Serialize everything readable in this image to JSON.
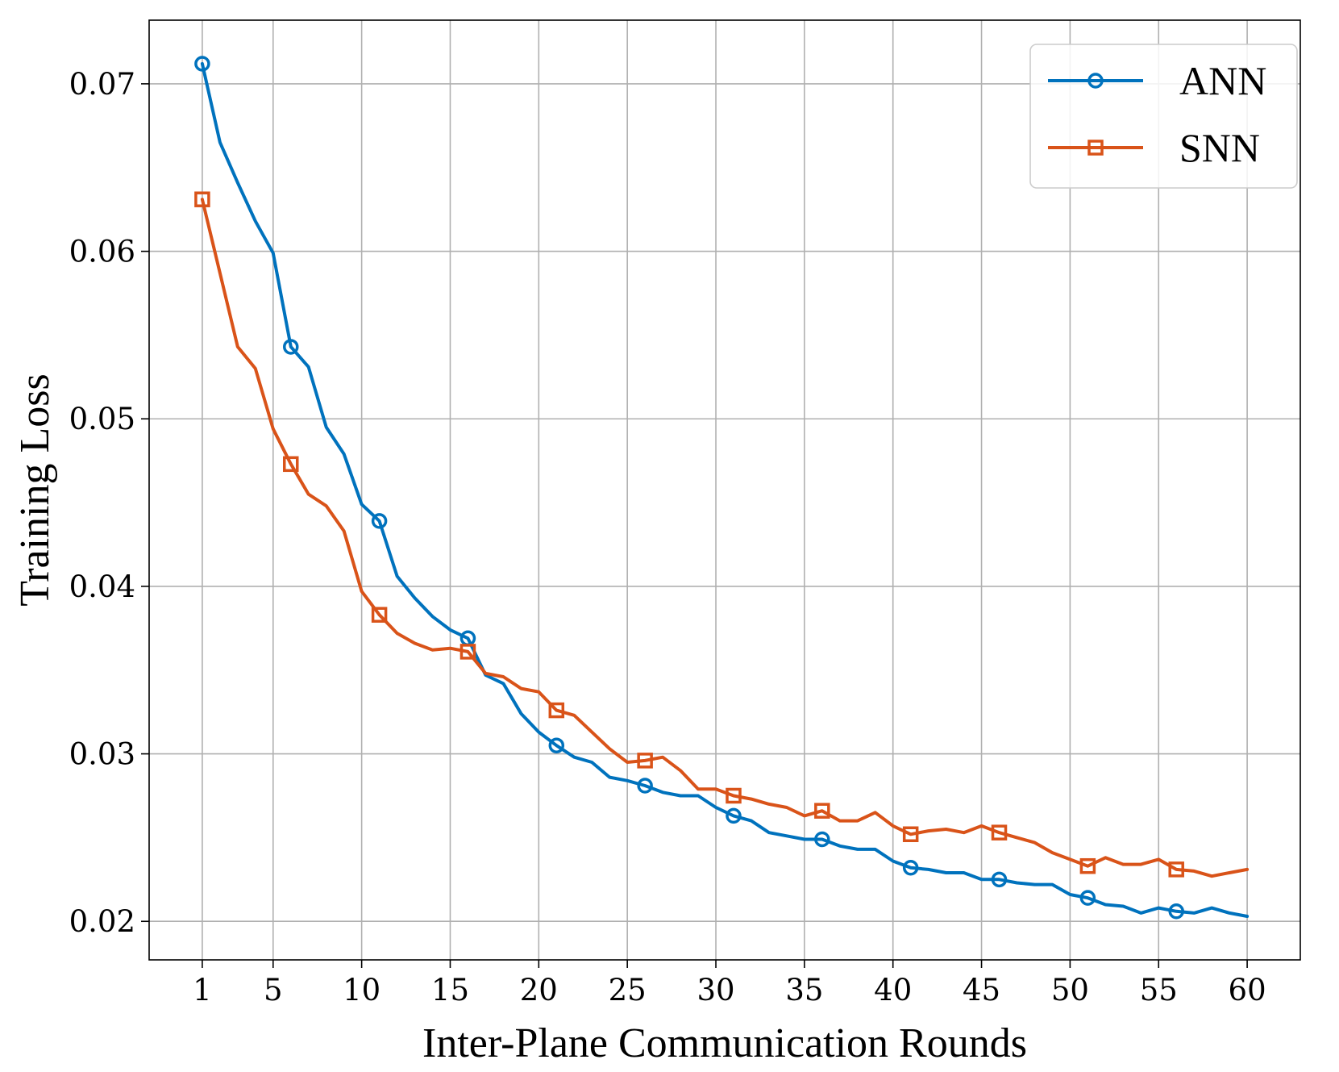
{
  "chart_data": {
    "type": "line",
    "title": "",
    "xlabel": "Inter-Plane Communication Rounds",
    "ylabel": "Training Loss",
    "xlim": [
      -2,
      63
    ],
    "ylim": [
      0.0177,
      0.0738
    ],
    "xticks": [
      1,
      5,
      10,
      15,
      20,
      25,
      30,
      35,
      40,
      45,
      50,
      55,
      60
    ],
    "xtick_labels": [
      "1",
      "5",
      "10",
      "15",
      "20",
      "25",
      "30",
      "35",
      "40",
      "45",
      "50",
      "55",
      "60"
    ],
    "yticks": [
      0.02,
      0.03,
      0.04,
      0.05,
      0.06,
      0.07
    ],
    "ytick_labels": [
      "0.02",
      "0.03",
      "0.04",
      "0.05",
      "0.06",
      "0.07"
    ],
    "grid": true,
    "legend_position": "top-right",
    "marker_every": 5,
    "series": [
      {
        "name": "ANN",
        "color": "#0072bd",
        "marker": "circle",
        "x": [
          1,
          2,
          3,
          4,
          5,
          6,
          7,
          8,
          9,
          10,
          11,
          12,
          13,
          14,
          15,
          16,
          17,
          18,
          19,
          20,
          21,
          22,
          23,
          24,
          25,
          26,
          27,
          28,
          29,
          30,
          31,
          32,
          33,
          34,
          35,
          36,
          37,
          38,
          39,
          40,
          41,
          42,
          43,
          44,
          45,
          46,
          47,
          48,
          49,
          50,
          51,
          52,
          53,
          54,
          55,
          56,
          57,
          58,
          59,
          60
        ],
        "values": [
          0.0712,
          0.0665,
          0.0641,
          0.0618,
          0.0599,
          0.0543,
          0.0531,
          0.0495,
          0.0479,
          0.0449,
          0.0439,
          0.0406,
          0.0393,
          0.0382,
          0.0374,
          0.0369,
          0.0347,
          0.0342,
          0.0324,
          0.0313,
          0.0305,
          0.0298,
          0.0295,
          0.0286,
          0.0284,
          0.0281,
          0.0277,
          0.0275,
          0.0275,
          0.0268,
          0.0263,
          0.026,
          0.0253,
          0.0251,
          0.0249,
          0.0249,
          0.0245,
          0.0243,
          0.0243,
          0.0236,
          0.0232,
          0.0231,
          0.0229,
          0.0229,
          0.0225,
          0.0225,
          0.0223,
          0.0222,
          0.0222,
          0.0216,
          0.0214,
          0.021,
          0.0209,
          0.0205,
          0.0208,
          0.0206,
          0.0205,
          0.0208,
          0.0205,
          0.0203
        ]
      },
      {
        "name": "SNN",
        "color": "#d95319",
        "marker": "square",
        "x": [
          1,
          2,
          3,
          4,
          5,
          6,
          7,
          8,
          9,
          10,
          11,
          12,
          13,
          14,
          15,
          16,
          17,
          18,
          19,
          20,
          21,
          22,
          23,
          24,
          25,
          26,
          27,
          28,
          29,
          30,
          31,
          32,
          33,
          34,
          35,
          36,
          37,
          38,
          39,
          40,
          41,
          42,
          43,
          44,
          45,
          46,
          47,
          48,
          49,
          50,
          51,
          52,
          53,
          54,
          55,
          56,
          57,
          58,
          59,
          60
        ],
        "values": [
          0.0631,
          0.0587,
          0.0543,
          0.053,
          0.0494,
          0.0473,
          0.0455,
          0.0448,
          0.0433,
          0.0397,
          0.0383,
          0.0372,
          0.0366,
          0.0362,
          0.0363,
          0.0361,
          0.0348,
          0.0346,
          0.0339,
          0.0337,
          0.0326,
          0.0323,
          0.0313,
          0.0303,
          0.0295,
          0.0296,
          0.0298,
          0.029,
          0.0279,
          0.0279,
          0.0275,
          0.0273,
          0.027,
          0.0268,
          0.0263,
          0.0266,
          0.026,
          0.026,
          0.0265,
          0.0257,
          0.0252,
          0.0254,
          0.0255,
          0.0253,
          0.0257,
          0.0253,
          0.025,
          0.0247,
          0.0241,
          0.0237,
          0.0233,
          0.0238,
          0.0234,
          0.0234,
          0.0237,
          0.0231,
          0.023,
          0.0227,
          0.0229,
          0.0231
        ]
      }
    ]
  }
}
